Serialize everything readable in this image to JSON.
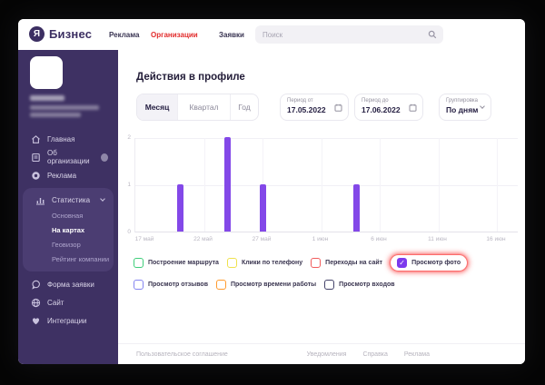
{
  "header": {
    "logo_glyph": "Я",
    "logo_text": "Бизнес",
    "nav": [
      {
        "label": "Реклама",
        "active": false
      },
      {
        "label": "Организации",
        "active": true
      },
      {
        "label": "Заявки",
        "active": false
      }
    ],
    "search_placeholder": "Поиск"
  },
  "sidebar": {
    "menu_top": [
      {
        "label": "Главная",
        "icon": "home-icon"
      },
      {
        "label": "Об организации",
        "icon": "document-icon",
        "has_badge": true
      },
      {
        "label": "Реклама",
        "icon": "ads-icon"
      },
      {
        "label": "Статистика",
        "icon": "stats-icon",
        "expanded": true
      }
    ],
    "submenu": [
      {
        "label": "Основная",
        "active": false
      },
      {
        "label": "На картах",
        "active": true
      },
      {
        "label": "Геовизор",
        "active": false
      },
      {
        "label": "Рейтинг компании",
        "active": false
      }
    ],
    "menu_bottom": [
      {
        "label": "Форма заявки",
        "icon": "chat-icon"
      },
      {
        "label": "Сайт",
        "icon": "globe-icon"
      },
      {
        "label": "Интеграции",
        "icon": "heart-icon"
      }
    ]
  },
  "main": {
    "title": "Действия в профиле",
    "period_tabs": [
      {
        "label": "Месяц",
        "active": true
      },
      {
        "label": "Квартал",
        "active": false
      },
      {
        "label": "Год",
        "active": false
      }
    ],
    "filters": {
      "period_from": {
        "label": "Период от",
        "value": "17.05.2022"
      },
      "period_to": {
        "label": "Период до",
        "value": "17.06.2022"
      },
      "grouping": {
        "label": "Группировка",
        "value": "По дням"
      }
    },
    "legend": {
      "row1": [
        {
          "label": "Построение маршрута",
          "color": "#3fce7a",
          "checked": false
        },
        {
          "label": "Клики по телефону",
          "color": "#efe14c",
          "checked": false
        },
        {
          "label": "Переходы на сайт",
          "color": "#f15c5c",
          "checked": false
        },
        {
          "label": "Просмотр фото",
          "color": "#7c3aed",
          "checked": true,
          "highlighted": true
        }
      ],
      "row2": [
        {
          "label": "Просмотр отзывов",
          "color": "#8585f0",
          "checked": false
        },
        {
          "label": "Просмотр времени работы",
          "color": "#ff9b2f",
          "checked": false
        },
        {
          "label": "Просмотр входов",
          "color": "#44436a",
          "checked": false
        }
      ]
    },
    "footer": {
      "left": "Пользовательское соглашение",
      "right": [
        "Уведомления",
        "Справка",
        "Реклама"
      ]
    }
  },
  "colors": {
    "brand_purple": "#3c2f62",
    "sidebar_bg": "#3e3163",
    "sidebar_block_bg": "#4b3d72",
    "nav_active_red": "#e22c2c",
    "bar_purple": "#8348e8",
    "highlight_ring": "#fa4646"
  },
  "chart_data": {
    "type": "bar",
    "title": "Действия в профиле",
    "series_name": "Просмотр фото",
    "bar_color": "#8348e8",
    "x_tick_labels": [
      "17 май",
      "22 май",
      "27 май",
      "1 июн",
      "6 июн",
      "11 июн",
      "16 июн"
    ],
    "x_tick_day_index": [
      0,
      5,
      10,
      15,
      20,
      25,
      30
    ],
    "y_ticks": [
      0,
      1,
      2
    ],
    "ylim": [
      0,
      2
    ],
    "grid": true,
    "legend_position": "bottom",
    "bars": [
      {
        "date": "20.05.2022",
        "day_index": 3,
        "value": 1
      },
      {
        "date": "24.05.2022",
        "day_index": 7,
        "value": 2
      },
      {
        "date": "27.05.2022",
        "day_index": 10,
        "value": 1
      },
      {
        "date": "04.06.2022",
        "day_index": 18,
        "value": 1
      }
    ]
  }
}
